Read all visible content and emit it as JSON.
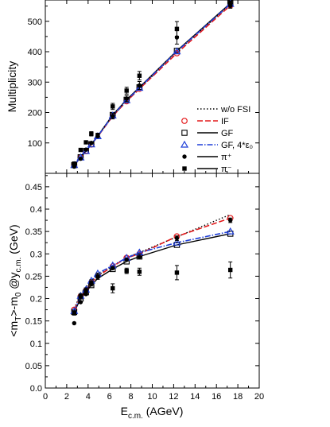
{
  "colors": {
    "ideal_fluid": "#e41a1c",
    "gradient_flow": "#000000",
    "gradient_flow_4eps": "#1f3fd8",
    "without_fsi": "#000000",
    "data": "#000000"
  },
  "legend": {
    "entries": [
      {
        "key": "wofsi",
        "label": "w/o FSI",
        "marker": "none",
        "line": "dotted"
      },
      {
        "key": "IF",
        "label": "IF",
        "marker": "circle-open",
        "line": "dashed"
      },
      {
        "key": "GF",
        "label": "GF",
        "marker": "square-open",
        "line": "solid"
      },
      {
        "key": "GF4",
        "label": "GF, 4*ε₀",
        "marker": "triangle-open",
        "line": "dashdot"
      },
      {
        "key": "piplus",
        "label": "π⁺",
        "marker": "circle-filled",
        "line": "solid"
      },
      {
        "key": "piminus",
        "label": "π⁻",
        "marker": "square-filled",
        "line": "solid"
      }
    ]
  },
  "chart_data": [
    {
      "type": "line",
      "panel": "top",
      "ylabel": "Multiplicity",
      "xlim": [
        0,
        20
      ],
      "ylim": [
        0,
        570
      ],
      "xticks": [],
      "yticks": [
        100,
        200,
        300,
        400,
        500
      ],
      "ytick_labels": [
        "100",
        "200",
        "300",
        "400",
        "500"
      ],
      "series": [
        {
          "key": "wofsi",
          "x": [
            2.7,
            3.3,
            3.8,
            4.3,
            4.9,
            6.3,
            7.6,
            8.8,
            12.3,
            17.3
          ],
          "y": [
            27,
            52,
            73,
            95,
            121,
            188,
            237,
            278,
            400,
            555
          ]
        },
        {
          "key": "IF",
          "x": [
            2.7,
            3.3,
            3.8,
            4.3,
            4.9,
            6.3,
            7.6,
            8.8,
            12.3,
            17.3
          ],
          "y": [
            27,
            52,
            73,
            95,
            121,
            188,
            237,
            278,
            395,
            552
          ]
        },
        {
          "key": "GF",
          "x": [
            2.7,
            3.3,
            3.8,
            4.3,
            4.9,
            6.3,
            7.6,
            8.8,
            12.3,
            17.3
          ],
          "y": [
            27,
            53,
            74,
            96,
            123,
            192,
            242,
            283,
            403,
            559
          ]
        },
        {
          "key": "GF4",
          "x": [
            2.7,
            3.3,
            3.8,
            4.3,
            4.9,
            6.3,
            7.6,
            8.8,
            12.3,
            17.3
          ],
          "y": [
            27,
            52,
            73,
            95,
            122,
            190,
            240,
            281,
            401,
            557
          ]
        },
        {
          "key": "piplus",
          "x": [
            2.7,
            3.3,
            3.8,
            4.3,
            4.9,
            6.3,
            7.6,
            8.8,
            12.3,
            17.3
          ],
          "y": [
            22,
            48,
            78,
            100,
            122,
            188,
            246,
            289,
            447,
            551
          ],
          "err": [
            4,
            4,
            5,
            6,
            6,
            9,
            10,
            13,
            22,
            8
          ]
        },
        {
          "key": "piminus",
          "x": [
            2.7,
            3.3,
            3.8,
            4.3,
            4.9,
            6.3,
            7.6,
            8.8,
            12.3,
            17.3
          ],
          "y": [
            32,
            77,
            102,
            130,
            125,
            220,
            272,
            321,
            475,
            558
          ],
          "err": [
            4,
            5,
            6,
            7,
            7,
            10,
            11,
            14,
            24,
            8
          ]
        }
      ]
    },
    {
      "type": "line",
      "panel": "bottom",
      "xlabel": "E",
      "xlabel_sub": "c.m.",
      "xlabel_tail": " (AGeV)",
      "ylabel": "<m",
      "ylabel_sub": "T",
      "ylabel_mid": ">-m",
      "ylabel_sub2": "0",
      "ylabel_mid2": " @y",
      "ylabel_sub3": "c.m.",
      "ylabel_tail": " (GeV)",
      "xlim": [
        0,
        20
      ],
      "ylim": [
        0,
        0.48
      ],
      "xticks": [
        0,
        2,
        4,
        6,
        8,
        10,
        12,
        14,
        16,
        18,
        20
      ],
      "xtick_labels": [
        "0",
        "2",
        "4",
        "6",
        "8",
        "10",
        "12",
        "14",
        "16",
        "18",
        "20"
      ],
      "yticks": [
        0,
        0.05,
        0.1,
        0.15,
        0.2,
        0.25,
        0.3,
        0.35,
        0.4,
        0.45
      ],
      "ytick_labels": [
        "0.0",
        "0.05",
        "0.1",
        "0.15",
        "0.2",
        "0.25",
        "0.3",
        "0.35",
        "0.4",
        "0.45"
      ],
      "series": [
        {
          "key": "wofsi",
          "x": [
            2.7,
            3.3,
            3.8,
            4.3,
            4.9,
            6.3,
            7.6,
            8.8,
            12.3,
            17.3
          ],
          "y": [
            0.178,
            0.21,
            0.226,
            0.24,
            0.252,
            0.272,
            0.292,
            0.303,
            0.338,
            0.388
          ]
        },
        {
          "key": "IF",
          "x": [
            2.7,
            3.3,
            3.8,
            4.3,
            4.9,
            6.3,
            7.6,
            8.8,
            12.3,
            17.3
          ],
          "y": [
            0.175,
            0.205,
            0.218,
            0.236,
            0.25,
            0.272,
            0.291,
            0.3,
            0.339,
            0.38
          ]
        },
        {
          "key": "GF",
          "x": [
            2.7,
            3.3,
            3.8,
            4.3,
            4.9,
            6.3,
            7.6,
            8.8,
            12.3,
            17.3
          ],
          "y": [
            0.17,
            0.2,
            0.214,
            0.23,
            0.245,
            0.266,
            0.283,
            0.294,
            0.32,
            0.345
          ]
        },
        {
          "key": "GF4",
          "x": [
            2.7,
            3.3,
            3.8,
            4.3,
            4.9,
            6.3,
            7.6,
            8.8,
            12.3,
            17.3
          ],
          "y": [
            0.172,
            0.206,
            0.22,
            0.24,
            0.256,
            0.274,
            0.291,
            0.303,
            0.325,
            0.35
          ]
        },
        {
          "key": "piplus",
          "x": [
            2.7,
            3.3,
            3.8,
            4.3,
            4.9,
            6.3,
            7.6,
            8.8,
            12.3,
            17.3
          ],
          "y": [
            0.145,
            0.192,
            0.21,
            0.233,
            0.248,
            0.268,
            0.287,
            0.293,
            0.335,
            0.375
          ],
          "err": [
            0.004,
            0.003,
            0.003,
            0.004,
            0.004,
            0.004,
            0.004,
            0.004,
            0.005,
            0.005
          ]
        },
        {
          "key": "piminus",
          "x": [
            2.7,
            3.3,
            3.8,
            4.3,
            4.9,
            6.3,
            7.6,
            8.8,
            12.3,
            17.3
          ],
          "y": [
            0.168,
            0.205,
            0.218,
            0.235,
            0.25,
            0.223,
            0.262,
            0.26,
            0.258,
            0.264
          ],
          "err": [
            0.005,
            0.006,
            0.006,
            0.007,
            0.007,
            0.01,
            0.006,
            0.008,
            0.016,
            0.018
          ]
        }
      ]
    }
  ]
}
